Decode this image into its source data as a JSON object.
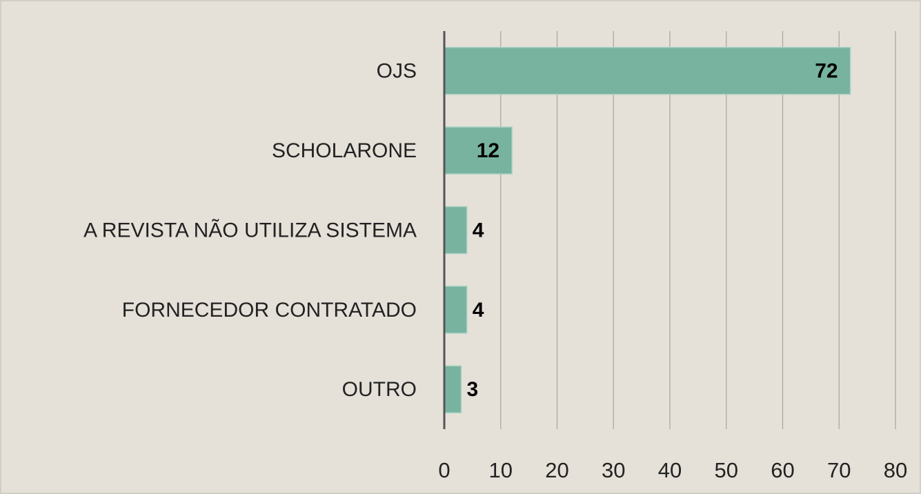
{
  "chart_data": {
    "type": "bar",
    "orientation": "horizontal",
    "categories": [
      "OJS",
      "SCHOLARONE",
      "A REVISTA NÃO UTILIZA SISTEMA",
      "FORNECEDOR CONTRATADO",
      "OUTRO"
    ],
    "values": [
      72,
      12,
      4,
      4,
      3
    ],
    "color": "#78b3a0",
    "xlim": [
      0,
      80
    ],
    "xticks": [
      0,
      10,
      20,
      30,
      40,
      50,
      60,
      70,
      80
    ],
    "grid": true
  }
}
